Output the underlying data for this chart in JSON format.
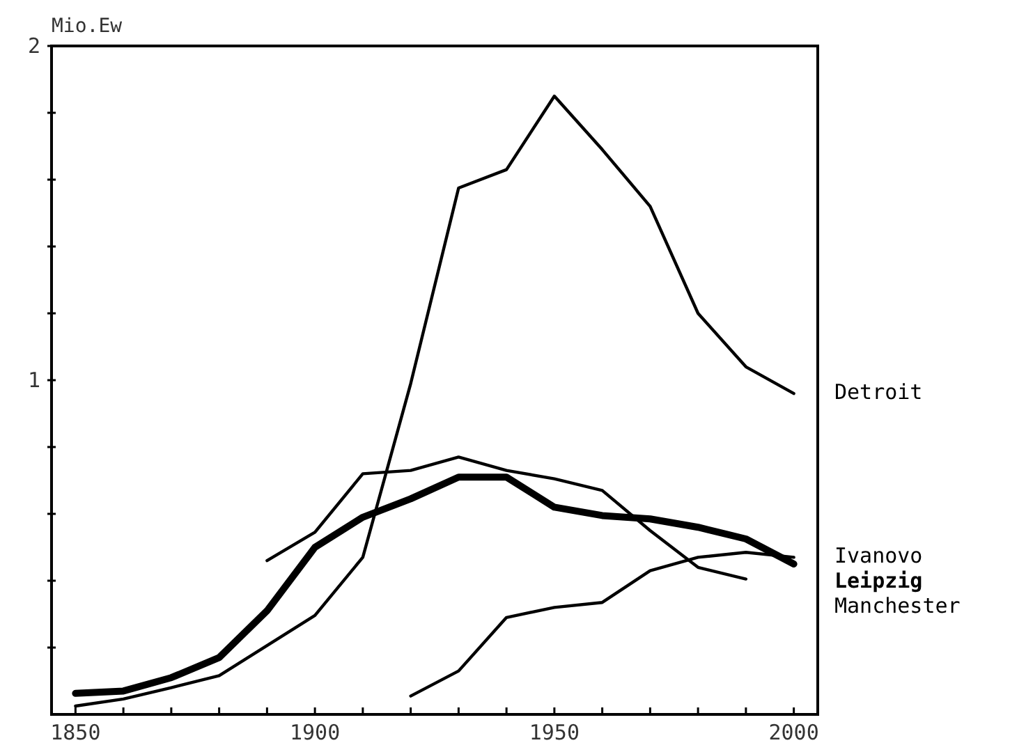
{
  "chart_data": {
    "type": "line",
    "ylabel": "Mio.Ew",
    "xlim": [
      1845,
      2005
    ],
    "ylim": [
      0,
      2
    ],
    "xticks": [
      1850,
      {
        "value": 1860,
        "label": null
      },
      {
        "value": 1870,
        "label": null
      },
      {
        "value": 1880,
        "label": null
      },
      {
        "value": 1890,
        "label": null
      },
      1900,
      {
        "value": 1910,
        "label": null
      },
      {
        "value": 1920,
        "label": null
      },
      {
        "value": 1930,
        "label": null
      },
      {
        "value": 1940,
        "label": null
      },
      1950,
      {
        "value": 1960,
        "label": null
      },
      {
        "value": 1970,
        "label": null
      },
      {
        "value": 1980,
        "label": null
      },
      {
        "value": 1990,
        "label": null
      },
      2000
    ],
    "yticks": [
      {
        "value": 0.2,
        "label": null
      },
      {
        "value": 0.4,
        "label": null
      },
      {
        "value": 0.6,
        "label": null
      },
      {
        "value": 0.8,
        "label": null
      },
      1,
      {
        "value": 1.2,
        "label": null
      },
      {
        "value": 1.4,
        "label": null
      },
      {
        "value": 1.6,
        "label": null
      },
      {
        "value": 1.8,
        "label": null
      },
      2
    ],
    "grid": false,
    "legend": false,
    "marker": "none",
    "line_style": "solid",
    "x": [
      1850,
      1860,
      1870,
      1880,
      1890,
      1900,
      1910,
      1920,
      1930,
      1940,
      1950,
      1960,
      1970,
      1980,
      1990,
      2000
    ],
    "series": [
      {
        "name": "Detroit",
        "color": "#000000",
        "values": [
          0.025,
          0.046,
          0.08,
          0.116,
          0.206,
          0.296,
          0.47,
          0.99,
          1.575,
          1.63,
          1.85,
          1.69,
          1.52,
          1.2,
          1.04,
          0.96
        ]
      },
      {
        "name": "Ivanovo",
        "color": "#000000",
        "values": [
          null,
          null,
          null,
          null,
          null,
          null,
          null,
          0.055,
          0.13,
          0.29,
          0.32,
          0.335,
          0.43,
          0.47,
          0.485,
          0.47
        ]
      },
      {
        "name": "Leipzig",
        "color": "#000000",
        "values": [
          0.063,
          0.07,
          0.11,
          0.17,
          0.31,
          0.5,
          0.59,
          0.645,
          0.71,
          0.71,
          0.62,
          0.595,
          0.585,
          0.56,
          0.525,
          0.45
        ]
      },
      {
        "name": "Manchester",
        "color": "#000000",
        "values": [
          null,
          null,
          null,
          null,
          0.46,
          0.545,
          0.72,
          0.73,
          0.77,
          0.73,
          0.705,
          0.67,
          0.55,
          0.44,
          0.405,
          null
        ]
      }
    ]
  }
}
